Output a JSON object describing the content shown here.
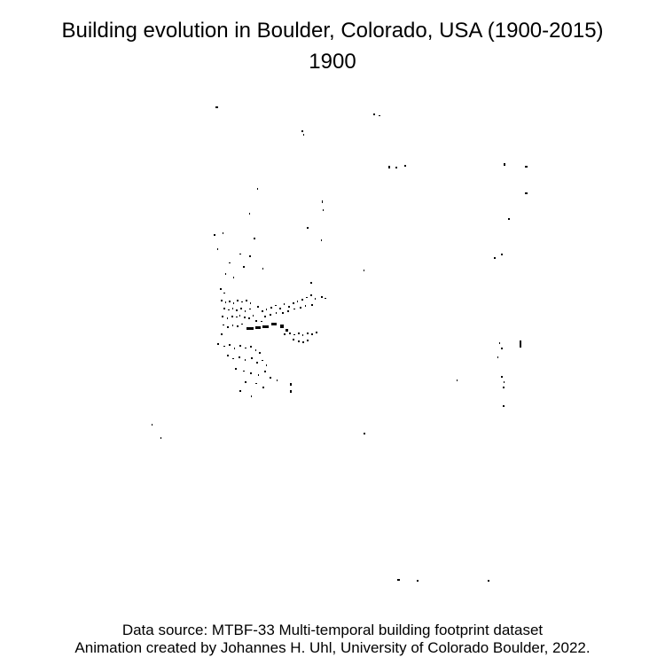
{
  "title": "Building evolution in Boulder, Colorado, USA (1900-2015)",
  "year": "1900",
  "credits": {
    "source": "Data source: MTBF-33 Multi-temporal building footprint dataset",
    "author": "Animation created by Johannes H. Uhl, University of Colorado Boulder, 2022."
  },
  "map": {
    "building_color": "#000000",
    "background_color": "#ffffff"
  }
}
